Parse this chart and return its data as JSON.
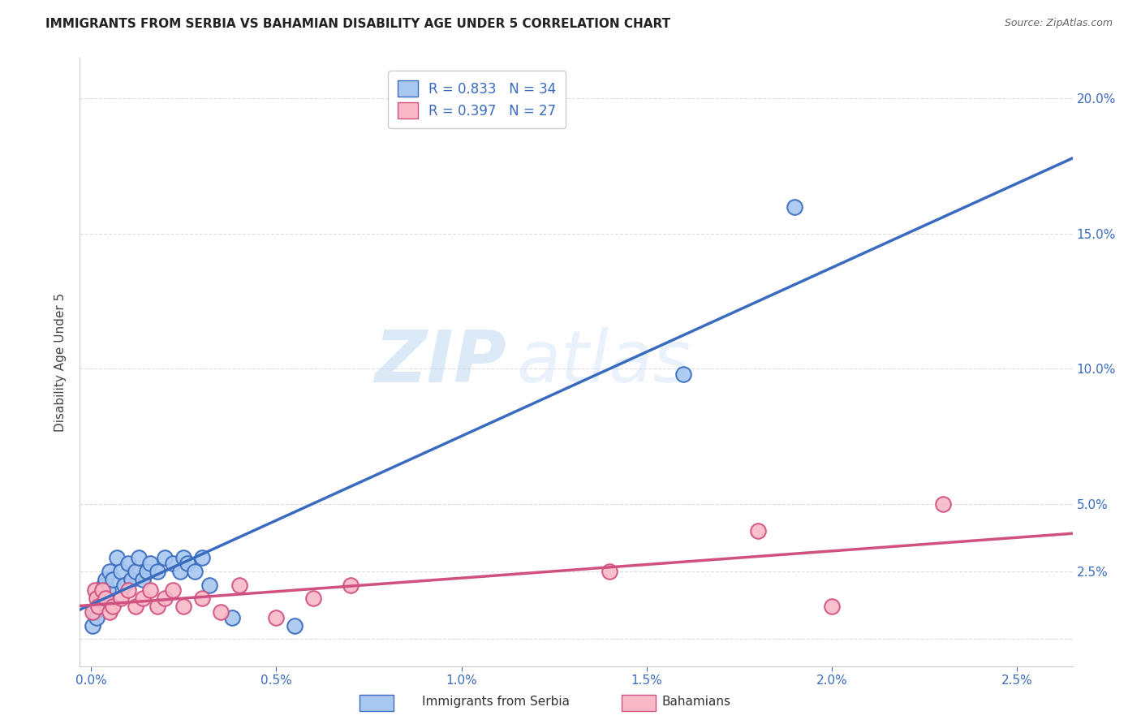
{
  "title": "IMMIGRANTS FROM SERBIA VS BAHAMIAN DISABILITY AGE UNDER 5 CORRELATION CHART",
  "source": "Source: ZipAtlas.com",
  "ylabel": "Disability Age Under 5",
  "serbia_color": "#a8c8f0",
  "serbia_line_color": "#3a6bbf",
  "bahamian_color": "#f8b8c8",
  "bahamian_line_color": "#d05080",
  "serbia_R": 0.833,
  "serbia_N": 34,
  "bahamian_R": 0.397,
  "bahamian_N": 27,
  "serbia_x": [
    5e-05,
    0.0001,
    0.00015,
    0.0002,
    0.00025,
    0.0003,
    0.00035,
    0.0004,
    0.00045,
    0.0005,
    0.0006,
    0.0007,
    0.0008,
    0.0009,
    0.001,
    0.0011,
    0.0012,
    0.0013,
    0.0014,
    0.0015,
    0.0016,
    0.0018,
    0.002,
    0.0022,
    0.0024,
    0.0025,
    0.0026,
    0.0028,
    0.003,
    0.0032,
    0.0038,
    0.0055,
    0.016,
    0.019
  ],
  "serbia_y": [
    0.005,
    0.01,
    0.008,
    0.012,
    0.015,
    0.018,
    0.02,
    0.022,
    0.018,
    0.025,
    0.022,
    0.03,
    0.025,
    0.02,
    0.028,
    0.022,
    0.025,
    0.03,
    0.022,
    0.025,
    0.028,
    0.025,
    0.03,
    0.028,
    0.025,
    0.03,
    0.028,
    0.025,
    0.03,
    0.02,
    0.008,
    0.005,
    0.098,
    0.16
  ],
  "bahamian_x": [
    5e-05,
    0.0001,
    0.00015,
    0.0002,
    0.0003,
    0.0004,
    0.0005,
    0.0006,
    0.0008,
    0.001,
    0.0012,
    0.0014,
    0.0016,
    0.0018,
    0.002,
    0.0022,
    0.0025,
    0.003,
    0.0035,
    0.004,
    0.005,
    0.006,
    0.007,
    0.014,
    0.018,
    0.02,
    0.023
  ],
  "bahamian_y": [
    0.01,
    0.018,
    0.015,
    0.012,
    0.018,
    0.015,
    0.01,
    0.012,
    0.015,
    0.018,
    0.012,
    0.015,
    0.018,
    0.012,
    0.015,
    0.018,
    0.012,
    0.015,
    0.01,
    0.02,
    0.008,
    0.015,
    0.02,
    0.025,
    0.04,
    0.012,
    0.05
  ],
  "xlim_min": -0.0003,
  "xlim_max": 0.0265,
  "ylim_min": -0.01,
  "ylim_max": 0.215,
  "x_ticks": [
    0.0,
    0.005,
    0.01,
    0.015,
    0.02,
    0.025
  ],
  "y_ticks_right": [
    0.0,
    0.025,
    0.05,
    0.1,
    0.15,
    0.2
  ],
  "y_tick_labels_right": [
    "",
    "2.5%",
    "5.0%",
    "10.0%",
    "15.0%",
    "20.0%"
  ],
  "background_color": "#ffffff",
  "watermark_zip": "ZIP",
  "watermark_atlas": "atlas",
  "legend_label_serbia": "Immigrants from Serbia",
  "legend_label_bahamian": "Bahamians",
  "grid_color": "#dddddd",
  "spine_color": "#cccccc"
}
